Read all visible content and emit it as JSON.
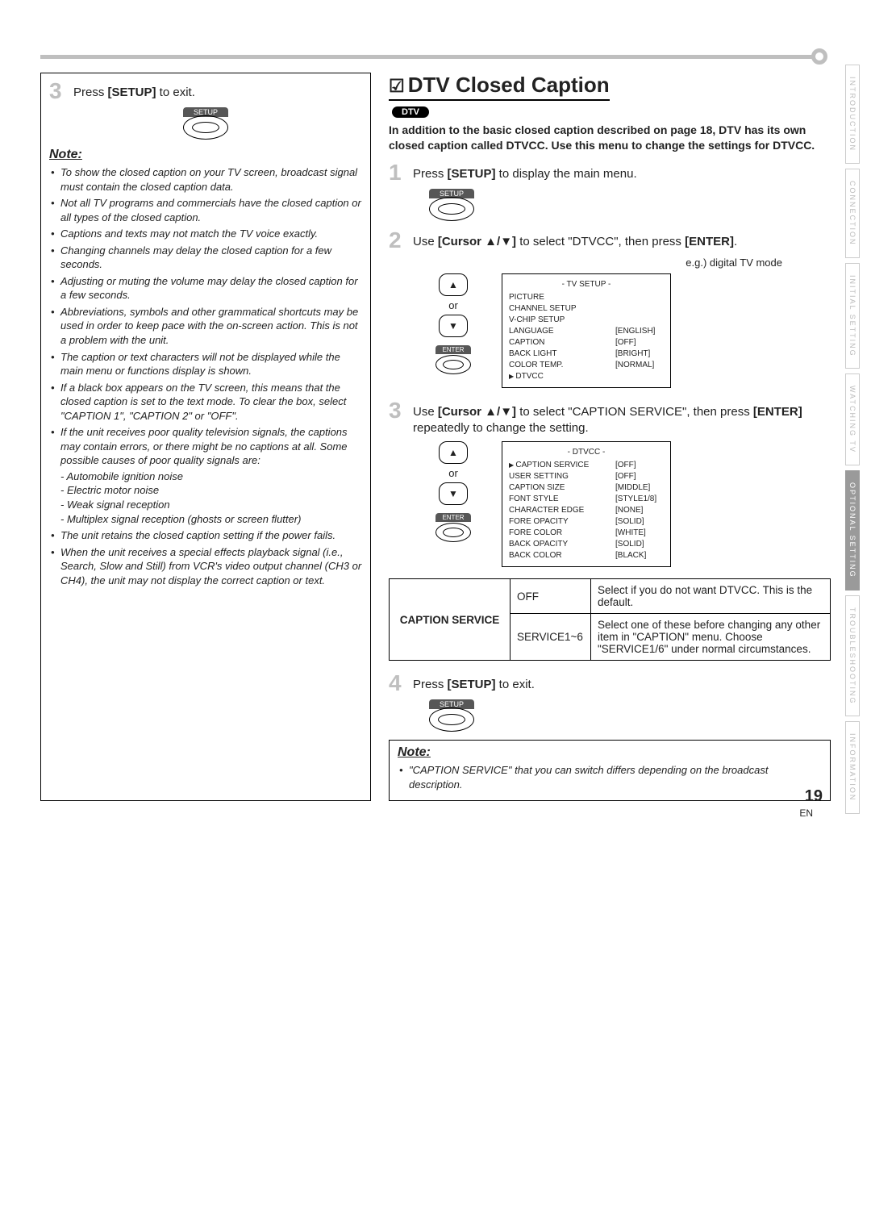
{
  "sidebar": {
    "tabs": [
      "INTRODUCTION",
      "CONNECTION",
      "INITIAL SETTING",
      "WATCHING TV",
      "OPTIONAL SETTING",
      "TROUBLESHOOTING",
      "INFORMATION"
    ],
    "active_index": 4
  },
  "right": {
    "title": "DTV Closed Caption",
    "checkmark": "☑",
    "dtv_badge": "DTV",
    "intro": "In addition to the basic closed caption described on page 18, DTV has its own closed caption called DTVCC. Use this menu to change the settings for DTVCC.",
    "step1_pre": "Press ",
    "step1_key": "[SETUP]",
    "step1_post": " to display the main menu.",
    "setup_label": "SETUP",
    "step2_pre": "Use ",
    "step2_key": "[Cursor ▲/▼]",
    "step2_mid": " to select \"DTVCC\", then press ",
    "step2_enter": "[ENTER]",
    "step2_post": ".",
    "osd1_caption": "e.g.) digital TV mode",
    "osd1_title": "- TV SETUP -",
    "osd1": [
      {
        "k": "PICTURE",
        "v": ""
      },
      {
        "k": "CHANNEL SETUP",
        "v": ""
      },
      {
        "k": "V-CHIP SETUP",
        "v": ""
      },
      {
        "k": "LANGUAGE",
        "v": "[ENGLISH]"
      },
      {
        "k": "CAPTION",
        "v": "[OFF]"
      },
      {
        "k": "BACK LIGHT",
        "v": "[BRIGHT]"
      },
      {
        "k": "COLOR TEMP.",
        "v": "[NORMAL]"
      },
      {
        "k": "DTVCC",
        "v": "",
        "pointer": true
      }
    ],
    "step3_pre": "Use ",
    "step3_key": "[Cursor ▲/▼]",
    "step3_mid": " to select \"CAPTION SERVICE\", then press ",
    "step3_enter": "[ENTER]",
    "step3_post": " repeatedly to change the setting.",
    "osd2_title": "- DTVCC -",
    "osd2": [
      {
        "k": "CAPTION SERVICE",
        "v": "[OFF]",
        "pointer": true
      },
      {
        "k": "USER SETTING",
        "v": "[OFF]"
      },
      {
        "k": "CAPTION SIZE",
        "v": "[MIDDLE]"
      },
      {
        "k": "FONT STYLE",
        "v": "[STYLE1/8]"
      },
      {
        "k": "CHARACTER EDGE",
        "v": "[NONE]"
      },
      {
        "k": "FORE OPACITY",
        "v": "[SOLID]"
      },
      {
        "k": "FORE COLOR",
        "v": "[WHITE]"
      },
      {
        "k": "BACK OPACITY",
        "v": "[SOLID]"
      },
      {
        "k": "BACK COLOR",
        "v": "[BLACK]"
      }
    ],
    "table": {
      "label": "CAPTION SERVICE",
      "rows": [
        {
          "opt": "OFF",
          "desc": "Select if you do not want DTVCC. This is the default."
        },
        {
          "opt": "SERVICE1~6",
          "desc": "Select one of these before changing any other item in \"CAPTION\" menu. Choose \"SERVICE1/6\" under normal circumstances."
        }
      ]
    },
    "step4_pre": "Press ",
    "step4_key": "[SETUP]",
    "step4_post": " to exit.",
    "note_title": "Note:",
    "note_item": "\"CAPTION SERVICE\" that you can switch differs depending on the broadcast description.",
    "or": "or",
    "enter_label": "ENTER"
  },
  "left": {
    "step3_pre": "Press ",
    "step3_key": "[SETUP]",
    "step3_post": " to exit.",
    "setup_label": "SETUP",
    "note_title": "Note:",
    "notes": [
      "To show the closed caption on your TV screen, broadcast signal must contain the closed caption data.",
      "Not all TV programs and commercials have the closed caption or all types of the closed caption.",
      "Captions and texts may not match the TV voice exactly.",
      "Changing channels may delay the closed caption for a few seconds.",
      "Adjusting or muting the volume may delay the closed caption for a few seconds.",
      "Abbreviations, symbols and other grammatical shortcuts may be used in order to keep pace with the on-screen action. This is not a problem with the unit.",
      "The caption or text characters will not be displayed while the main menu or functions display is shown.",
      "If a black box appears on the TV screen, this means that the closed caption is set to the text mode. To clear the box, select \"CAPTION 1\", \"CAPTION 2\" or \"OFF\".",
      "If the unit receives poor quality television signals, the captions may contain errors, or there might be no captions at all. Some possible causes of poor quality signals are:",
      "The unit retains the closed caption setting if the power fails.",
      "When the unit receives a special effects playback signal (i.e., Search, Slow and Still) from VCR's video output channel (CH3 or CH4), the unit may not display the correct caption or text."
    ],
    "subnotes": [
      "Automobile ignition noise",
      "Electric motor noise",
      "Weak signal reception",
      "Multiplex signal reception (ghosts or screen flutter)"
    ]
  },
  "page_number": "19",
  "page_lang": "EN"
}
